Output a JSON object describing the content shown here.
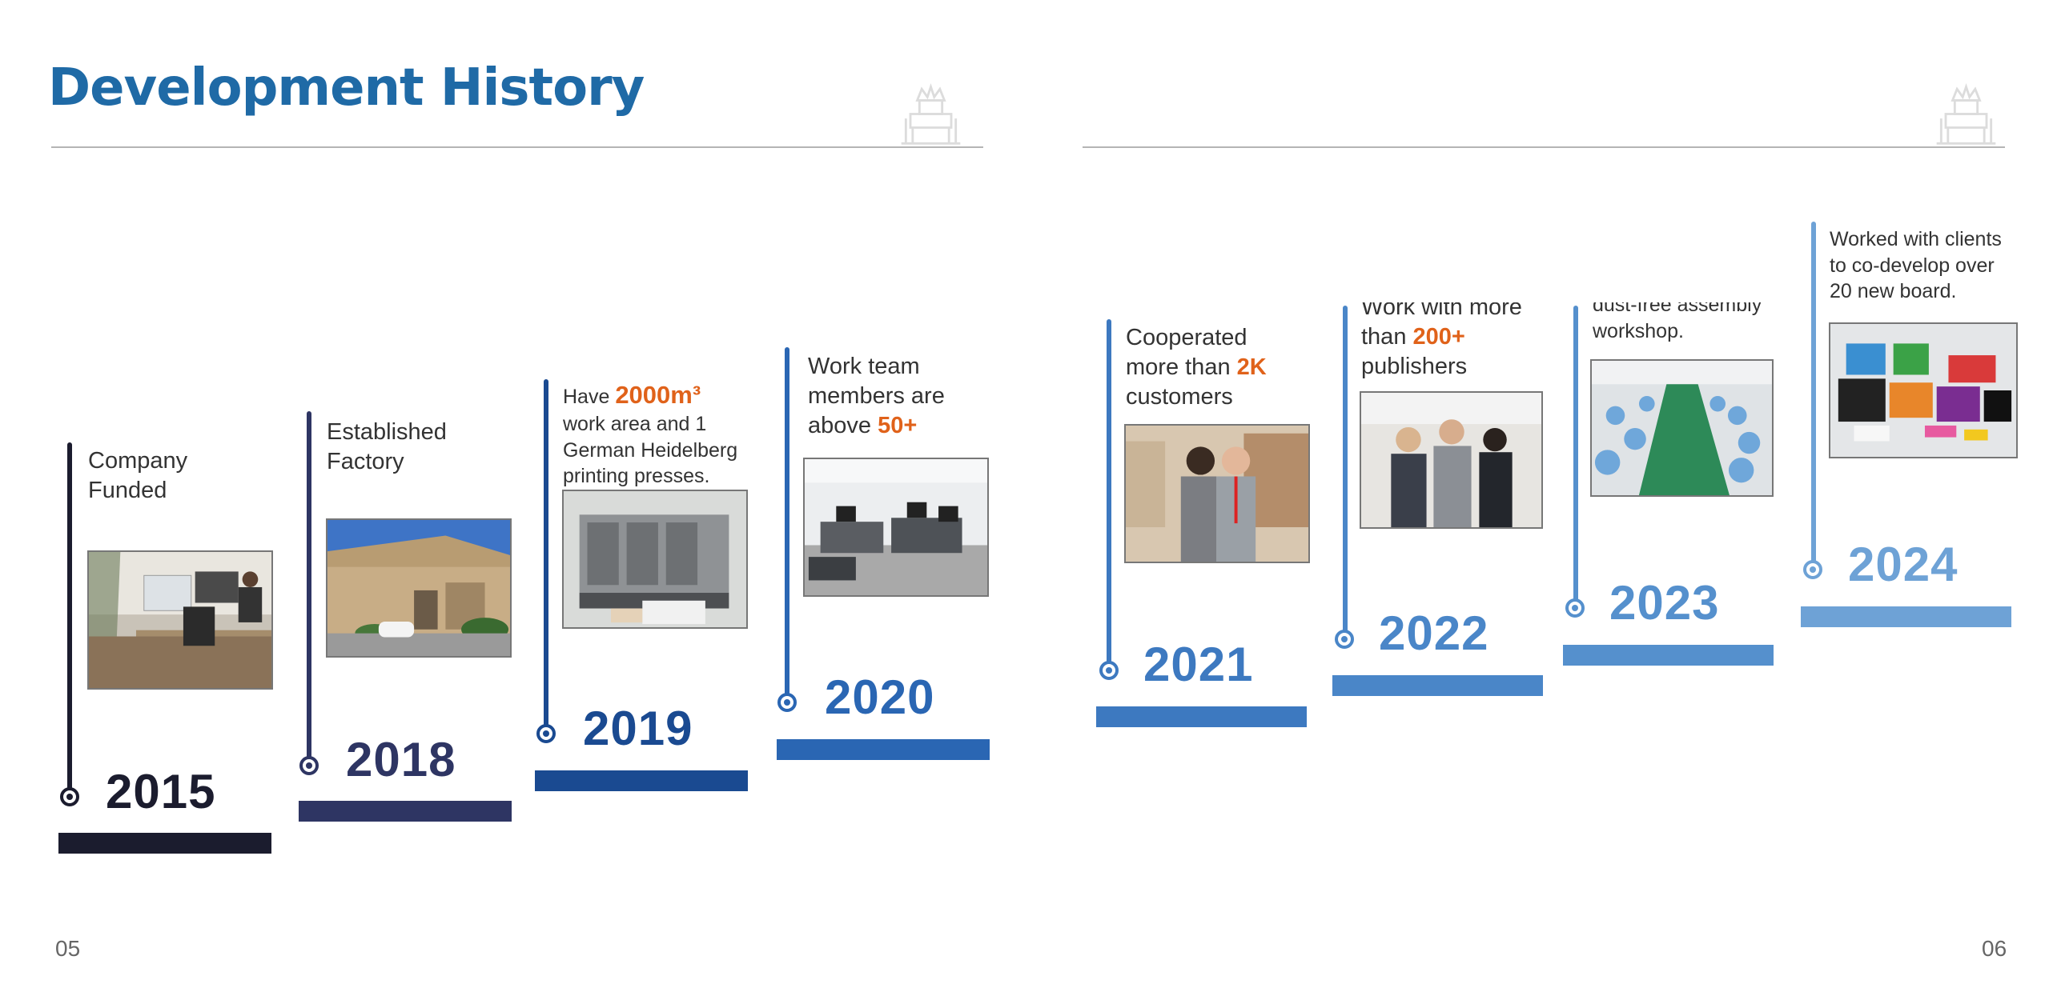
{
  "page": {
    "title": "Development History",
    "left_page_number": "05",
    "right_page_number": "06"
  },
  "colors": {
    "title": "#1f6aa6",
    "highlight": "#e0621a",
    "y2015": "#1b1c2e",
    "y2018": "#2e3563",
    "y2019": "#1a4a91",
    "y2020": "#2a66b3",
    "y2021": "#3d79c0",
    "y2022": "#4a86c8",
    "y2023": "#5590cd",
    "y2024": "#6ea2d6"
  },
  "icons": [
    "crown-chair-watermark-icon",
    "timeline-dot-icon"
  ],
  "milestones": [
    {
      "year": "2015",
      "desc_line1": "Company",
      "desc_line2": "Funded",
      "photo": "office-workspace-photo"
    },
    {
      "year": "2018",
      "desc_line1": "Established",
      "desc_line2": "Factory",
      "photo": "factory-building-photo"
    },
    {
      "year": "2019",
      "pre": "Have ",
      "hl": "2000m³",
      "desc_line2": "work area and 1",
      "desc_line3": "German Heidelberg",
      "desc_line4": "printing presses.",
      "photo": "printing-press-photo"
    },
    {
      "year": "2020",
      "desc_line1": "Work team",
      "desc_line2": "members are",
      "pre3": "above ",
      "hl": "50+",
      "photo": "team-office-photo"
    },
    {
      "year": "2021",
      "desc_line1": "Cooperated",
      "pre2": "more than ",
      "hl": "2K",
      "desc_line3": "customers",
      "photo": "customers-meeting-photo"
    },
    {
      "year": "2022",
      "desc_line1": "Work with more",
      "pre2": "than ",
      "hl": "200+",
      "desc_line3": "publishers",
      "photo": "publishers-group-photo"
    },
    {
      "year": "2023",
      "desc_line1": "dust-free assembly",
      "desc_line2": "workshop.",
      "photo": "assembly-workshop-photo"
    },
    {
      "year": "2024",
      "desc_line1": "Worked with clients",
      "desc_line2": "to co-develop over",
      "desc_line3": "20 new board.",
      "photo": "board-games-photo"
    }
  ]
}
